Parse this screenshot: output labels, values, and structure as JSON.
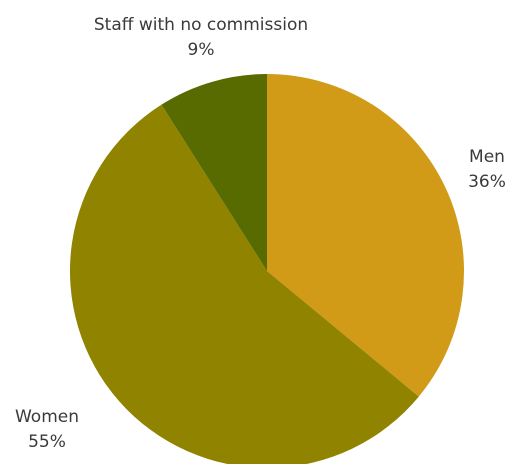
{
  "chart_data": {
    "type": "pie",
    "title": "",
    "start_angle_deg": 0,
    "direction": "clockwise",
    "legend": "none",
    "slices": [
      {
        "label": "Men",
        "value": 36,
        "display": "36%",
        "color": "#D19A17"
      },
      {
        "label": "Women",
        "value": 55,
        "display": "55%",
        "color": "#8F8300"
      },
      {
        "label": "Staff with no commission",
        "value": 9,
        "display": "9%",
        "color": "#586B00"
      }
    ]
  }
}
